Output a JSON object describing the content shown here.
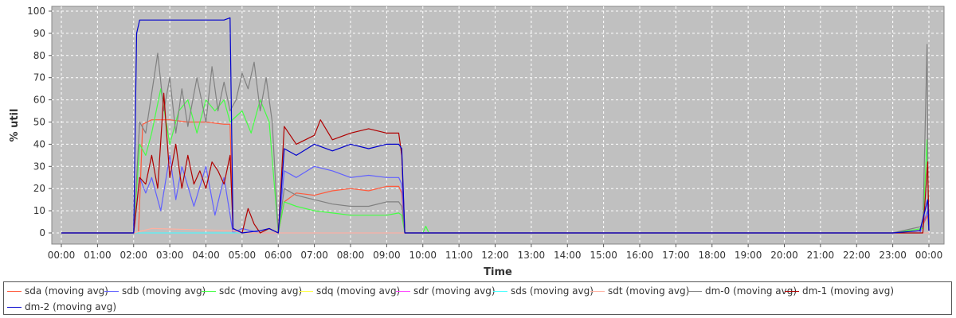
{
  "chart_data": {
    "type": "line",
    "xlabel": "Time",
    "ylabel": "% util",
    "ylim": [
      0,
      100
    ],
    "xlim": [
      "00:00",
      "24:00"
    ],
    "grid": true,
    "legend_position": "bottom",
    "yticks": [
      "0",
      "10",
      "20",
      "30",
      "40",
      "50",
      "60",
      "70",
      "80",
      "90",
      "100"
    ],
    "xticks": [
      "00:00",
      "01:00",
      "02:00",
      "03:00",
      "04:00",
      "05:00",
      "06:00",
      "07:00",
      "08:00",
      "09:00",
      "10:00",
      "11:00",
      "12:00",
      "13:00",
      "14:00",
      "15:00",
      "16:00",
      "17:00",
      "18:00",
      "19:00",
      "20:00",
      "21:00",
      "22:00",
      "23:00",
      "00:00"
    ],
    "series": [
      {
        "name": "sda (moving avg)",
        "color": "#ff5a3c",
        "x": [
          "00:00",
          "02:00",
          "02:08",
          "02:15",
          "02:30",
          "03:00",
          "03:30",
          "04:00",
          "04:30",
          "04:40",
          "04:45",
          "05:00",
          "05:30",
          "06:00",
          "06:10",
          "06:30",
          "07:00",
          "07:30",
          "08:00",
          "08:30",
          "09:00",
          "09:20",
          "09:25",
          "09:30",
          "10:00",
          "12:00",
          "16:00",
          "20:00",
          "23:00",
          "23:45",
          "23:58",
          "24:00"
        ],
        "values": [
          0,
          0,
          0,
          49,
          51,
          51,
          50,
          50,
          49,
          49,
          0,
          0,
          0,
          0,
          14,
          18,
          17,
          19,
          20,
          19,
          21,
          21,
          18,
          0,
          0,
          0,
          0,
          0,
          0,
          1,
          8,
          1
        ]
      },
      {
        "name": "sdb (moving avg)",
        "color": "#6060ff",
        "x": [
          "00:00",
          "02:00",
          "02:10",
          "02:20",
          "02:30",
          "02:45",
          "03:00",
          "03:10",
          "03:20",
          "03:40",
          "04:00",
          "04:15",
          "04:30",
          "04:45",
          "05:00",
          "05:30",
          "06:00",
          "06:10",
          "06:30",
          "07:00",
          "07:30",
          "08:00",
          "08:30",
          "09:00",
          "09:20",
          "09:25",
          "09:30",
          "10:00",
          "12:00",
          "16:00",
          "20:00",
          "23:00",
          "23:45",
          "23:58",
          "24:00"
        ],
        "values": [
          0,
          0,
          25,
          18,
          25,
          10,
          35,
          15,
          30,
          12,
          30,
          8,
          25,
          0,
          2,
          0,
          0,
          28,
          25,
          30,
          28,
          25,
          26,
          25,
          25,
          22,
          0,
          0,
          0,
          0,
          0,
          0,
          0,
          10,
          1
        ]
      },
      {
        "name": "sdc (moving avg)",
        "color": "#44ff44",
        "x": [
          "00:00",
          "02:00",
          "02:10",
          "02:20",
          "02:30",
          "02:45",
          "03:00",
          "03:15",
          "03:30",
          "03:45",
          "04:00",
          "04:15",
          "04:30",
          "04:40",
          "05:00",
          "05:15",
          "05:30",
          "05:45",
          "06:00",
          "06:10",
          "06:30",
          "07:00",
          "07:30",
          "08:00",
          "08:30",
          "09:00",
          "09:20",
          "09:25",
          "09:30",
          "10:00",
          "10:05",
          "10:10",
          "11:00",
          "16:00",
          "20:00",
          "23:00",
          "23:50",
          "23:57",
          "24:00"
        ],
        "values": [
          0,
          0,
          40,
          35,
          45,
          65,
          40,
          55,
          60,
          45,
          60,
          55,
          60,
          50,
          55,
          45,
          60,
          50,
          0,
          14,
          12,
          10,
          9,
          8,
          8,
          8,
          9,
          8,
          0,
          0,
          3,
          0,
          0,
          0,
          0,
          0,
          2,
          42,
          1
        ]
      },
      {
        "name": "sdq (moving avg)",
        "color": "#ffff44",
        "x": [
          "00:00",
          "24:00"
        ],
        "values": [
          0,
          0
        ]
      },
      {
        "name": "sdr (moving avg)",
        "color": "#ff44ff",
        "x": [
          "00:00",
          "24:00"
        ],
        "values": [
          0,
          0
        ]
      },
      {
        "name": "sds (moving avg)",
        "color": "#44ffff",
        "x": [
          "00:00",
          "24:00"
        ],
        "values": [
          0,
          0
        ]
      },
      {
        "name": "sdt (moving avg)",
        "color": "#ffb0a0",
        "x": [
          "00:00",
          "02:00",
          "02:30",
          "04:45",
          "05:00",
          "06:00",
          "09:30",
          "10:00",
          "24:00"
        ],
        "values": [
          0,
          0,
          2,
          1,
          0,
          0,
          0,
          0,
          0
        ]
      },
      {
        "name": "dm-0 (moving avg)",
        "color": "#808080",
        "x": [
          "00:00",
          "02:00",
          "02:10",
          "02:20",
          "02:40",
          "02:50",
          "03:00",
          "03:10",
          "03:20",
          "03:30",
          "03:45",
          "04:00",
          "04:10",
          "04:20",
          "04:30",
          "04:40",
          "04:50",
          "05:00",
          "05:10",
          "05:20",
          "05:30",
          "05:40",
          "05:50",
          "06:00",
          "06:10",
          "06:30",
          "07:00",
          "07:30",
          "08:00",
          "08:30",
          "09:00",
          "09:20",
          "09:25",
          "09:30",
          "10:00",
          "16:00",
          "20:00",
          "23:00",
          "23:50",
          "23:57",
          "23:59",
          "24:00"
        ],
        "values": [
          0,
          0,
          50,
          45,
          81,
          55,
          70,
          45,
          65,
          48,
          70,
          50,
          75,
          55,
          68,
          55,
          60,
          72,
          65,
          77,
          55,
          70,
          50,
          0,
          20,
          17,
          15,
          13,
          12,
          12,
          14,
          14,
          12,
          0,
          0,
          0,
          0,
          0,
          3,
          85,
          5,
          1
        ]
      },
      {
        "name": "dm-1 (moving avg)",
        "color": "#b00000",
        "x": [
          "00:00",
          "02:00",
          "02:10",
          "02:20",
          "02:30",
          "02:40",
          "02:50",
          "03:00",
          "03:10",
          "03:20",
          "03:30",
          "03:40",
          "03:50",
          "04:00",
          "04:10",
          "04:20",
          "04:30",
          "04:40",
          "04:45",
          "05:00",
          "05:10",
          "05:20",
          "05:30",
          "05:45",
          "06:00",
          "06:10",
          "06:30",
          "07:00",
          "07:10",
          "07:30",
          "08:00",
          "08:30",
          "09:00",
          "09:20",
          "09:25",
          "09:30",
          "10:00",
          "16:00",
          "20:00",
          "23:00",
          "23:50",
          "23:58",
          "24:00"
        ],
        "values": [
          0,
          0,
          25,
          22,
          35,
          20,
          63,
          25,
          40,
          20,
          35,
          22,
          28,
          20,
          32,
          28,
          22,
          35,
          2,
          0,
          11,
          4,
          0,
          2,
          0,
          48,
          40,
          44,
          51,
          42,
          45,
          47,
          45,
          45,
          35,
          0,
          0,
          0,
          0,
          0,
          0,
          32,
          1
        ]
      },
      {
        "name": "dm-2 (moving avg)",
        "color": "#0000cc",
        "x": [
          "00:00",
          "02:00",
          "02:05",
          "02:10",
          "02:30",
          "03:00",
          "03:30",
          "04:00",
          "04:30",
          "04:40",
          "04:45",
          "05:00",
          "05:30",
          "05:45",
          "06:00",
          "06:10",
          "06:30",
          "07:00",
          "07:30",
          "08:00",
          "08:30",
          "09:00",
          "09:20",
          "09:25",
          "09:30",
          "10:00",
          "16:00",
          "20:00",
          "23:00",
          "23:45",
          "23:58",
          "24:00"
        ],
        "values": [
          0,
          0,
          90,
          96,
          96,
          96,
          96,
          96,
          96,
          97,
          2,
          0,
          1,
          2,
          0,
          38,
          35,
          40,
          37,
          40,
          38,
          40,
          40,
          38,
          0,
          0,
          0,
          0,
          0,
          1,
          15,
          1
        ]
      }
    ]
  }
}
